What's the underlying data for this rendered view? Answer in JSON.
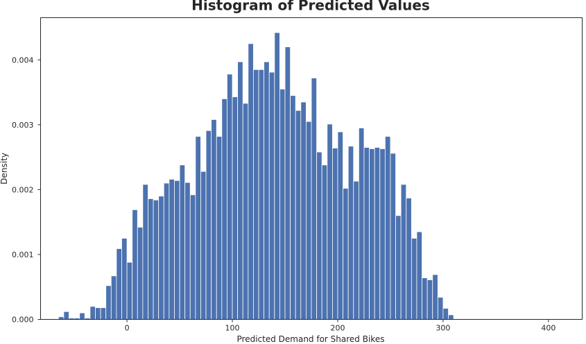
{
  "chart_data": {
    "type": "bar",
    "title": "Histogram of Predicted Values",
    "xlabel": "Predicted Demand for Shared Bikes",
    "ylabel": "Density",
    "xlim": [
      -82,
      432
    ],
    "ylim": [
      0,
      0.00465
    ],
    "xticks": [
      0,
      100,
      200,
      300,
      400
    ],
    "xtick_labels": [
      "0",
      "100",
      "200",
      "300",
      "400"
    ],
    "yticks": [
      0,
      0.001,
      0.002,
      0.003,
      0.004
    ],
    "ytick_labels": [
      "0.000",
      "0.001",
      "0.002",
      "0.003",
      "0.004"
    ],
    "grid": false,
    "bin_start": -65,
    "bin_width": 5,
    "bar_color": "#4c72b0",
    "values": [
      4e-05,
      0.00012,
      2e-05,
      2e-05,
      0.0001,
      2e-05,
      0.0002,
      0.00018,
      0.00018,
      0.00052,
      0.00067,
      0.00109,
      0.00125,
      0.00088,
      0.00169,
      0.00142,
      0.00208,
      0.00186,
      0.00184,
      0.0019,
      0.0021,
      0.00216,
      0.00214,
      0.00238,
      0.00211,
      0.00192,
      0.00282,
      0.00228,
      0.00291,
      0.00308,
      0.00282,
      0.0034,
      0.00378,
      0.00343,
      0.00397,
      0.00333,
      0.00425,
      0.00385,
      0.00385,
      0.00397,
      0.00381,
      0.00442,
      0.00355,
      0.0042,
      0.00345,
      0.00322,
      0.00335,
      0.00305,
      0.00372,
      0.00258,
      0.00238,
      0.00301,
      0.00264,
      0.00289,
      0.00202,
      0.00267,
      0.00213,
      0.00295,
      0.00265,
      0.00263,
      0.00265,
      0.00263,
      0.00282,
      0.00256,
      0.0016,
      0.00208,
      0.00187,
      0.00125,
      0.00135,
      0.00064,
      0.00061,
      0.00069,
      0.00034,
      0.00017,
      7e-05
    ]
  }
}
